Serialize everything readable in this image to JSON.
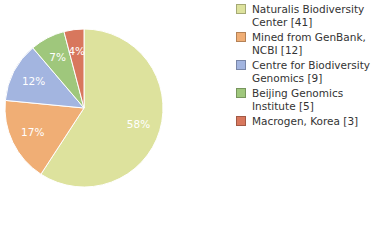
{
  "chart_data": {
    "type": "pie",
    "categories": [
      "Naturalis Biodiversity Center [41]",
      "Mined from GenBank, NCBI [12]",
      "Centre for Biodiversity Genomics [9]",
      "Beijing Genomics Institute [5]",
      "Macrogen, Korea [3]"
    ],
    "values": [
      58,
      17,
      12,
      7,
      4
    ],
    "value_labels": [
      "58%",
      "17%",
      "12%",
      "7%",
      "4%"
    ],
    "colors": [
      "#dde29d",
      "#f0ae75",
      "#a3b5e0",
      "#9fc77c",
      "#d8775d"
    ],
    "data_labels": true,
    "legend": "right"
  }
}
